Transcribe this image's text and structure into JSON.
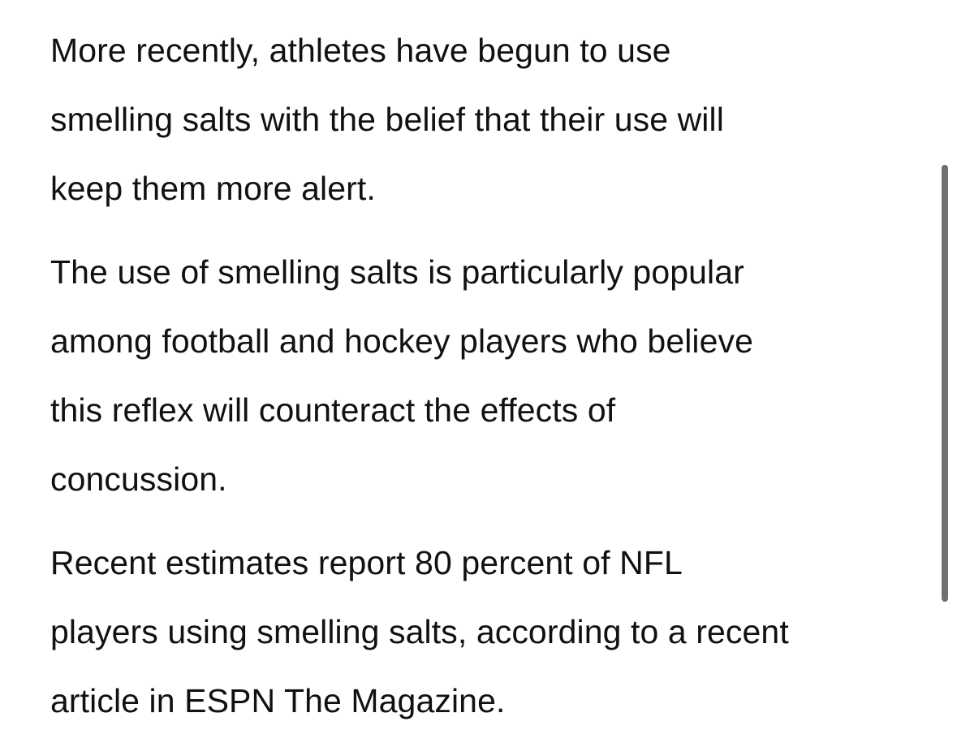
{
  "article": {
    "paragraphs": [
      {
        "lines": [
          "More recently, athletes have begun to use",
          "smelling salts with the belief that their use will",
          "keep them more alert."
        ]
      },
      {
        "lines": [
          "The use of smelling salts is particularly popular",
          "among football and hockey players who believe",
          "this reflex will counteract the effects of",
          "concussion."
        ]
      },
      {
        "lines": [
          "Recent estimates report 80 percent of NFL",
          "players using smelling salts, according to a recent",
          "article in ESPN The Magazine."
        ]
      }
    ]
  },
  "colors": {
    "text": "#111111",
    "background": "#ffffff",
    "scrollbar": "#6f6f6f"
  }
}
